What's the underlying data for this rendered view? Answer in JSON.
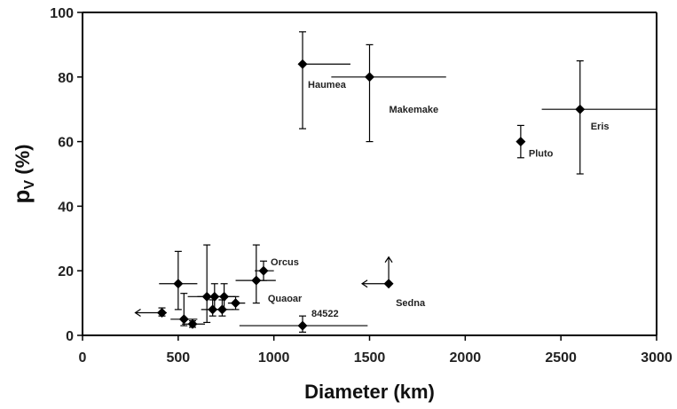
{
  "chart_data": {
    "type": "scatter",
    "title": "",
    "xlabel": "Diameter (km)",
    "ylabel": {
      "main": "p",
      "sub": "V",
      "suffix": " (%)"
    },
    "xlim": [
      0,
      3000
    ],
    "ylim": [
      0,
      100
    ],
    "x_ticks": [
      "0",
      "500",
      "1000",
      "1500",
      "2000",
      "2500",
      "3000"
    ],
    "y_ticks": [
      "0",
      "20",
      "40",
      "60",
      "80",
      "100"
    ],
    "grid": false,
    "legend": "none",
    "marker_color": "#000000",
    "points": [
      {
        "label": "Haumea",
        "x": 1150,
        "y": 84,
        "xerr": [
          1150,
          1400
        ],
        "yerr": [
          64,
          94
        ]
      },
      {
        "label": "Makemake",
        "x": 1500,
        "y": 80,
        "xerr": [
          1300,
          1900
        ],
        "yerr": [
          60,
          90
        ]
      },
      {
        "label": "Eris",
        "x": 2600,
        "y": 70,
        "xerr": [
          2400,
          3000
        ],
        "yerr": [
          50,
          85
        ]
      },
      {
        "label": "Pluto",
        "x": 2290,
        "y": 60,
        "yerr": [
          55,
          65
        ]
      },
      {
        "label": "Orcus",
        "x": 946,
        "y": 20,
        "xerr": [
          900,
          1000
        ],
        "yerr": [
          17,
          23
        ]
      },
      {
        "label": "Quaoar",
        "x": 908,
        "y": 17,
        "xerr": [
          800,
          1010
        ],
        "yerr": [
          10,
          28
        ]
      },
      {
        "label": "Sedna",
        "x": 1600,
        "y": 16,
        "arrows": [
          "left",
          "up"
        ]
      },
      {
        "label": "84522",
        "x": 1150,
        "y": 3,
        "xerr": [
          820,
          1490
        ],
        "yerr": [
          1,
          6
        ]
      },
      {
        "label": "",
        "x": 500,
        "y": 16,
        "xerr": [
          400,
          600
        ],
        "yerr": [
          8,
          26
        ]
      },
      {
        "label": "",
        "x": 650,
        "y": 12,
        "xerr": [
          550,
          760
        ],
        "yerr": [
          4,
          28
        ]
      },
      {
        "label": "",
        "x": 690,
        "y": 12,
        "xerr": [
          600,
          780
        ],
        "yerr": [
          8,
          16
        ]
      },
      {
        "label": "",
        "x": 740,
        "y": 12,
        "xerr": [
          680,
          800
        ],
        "yerr": [
          8,
          16
        ]
      },
      {
        "label": "",
        "x": 680,
        "y": 8,
        "xerr": [
          620,
          750
        ],
        "yerr": [
          6,
          11
        ]
      },
      {
        "label": "",
        "x": 730,
        "y": 8,
        "xerr": [
          680,
          790
        ],
        "yerr": [
          6,
          11
        ]
      },
      {
        "label": "",
        "x": 800,
        "y": 10,
        "xerr": [
          760,
          850
        ],
        "yerr": [
          8,
          12
        ]
      },
      {
        "label": "",
        "x": 415,
        "y": 7,
        "xerr": [
          390,
          440
        ],
        "yerr": [
          6,
          8.5
        ],
        "arrows": [
          "left"
        ]
      },
      {
        "label": "",
        "x": 530,
        "y": 5,
        "xerr": [
          460,
          600
        ],
        "yerr": [
          3,
          13
        ]
      },
      {
        "label": "",
        "x": 575,
        "y": 3.5,
        "xerr": [
          520,
          640
        ],
        "yerr": [
          2.5,
          4.5
        ]
      }
    ]
  }
}
